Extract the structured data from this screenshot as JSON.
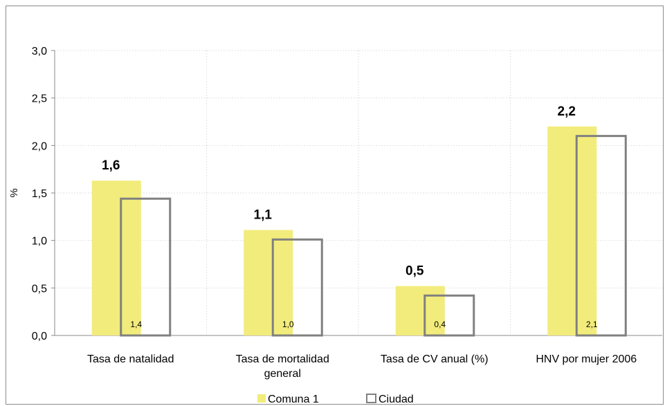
{
  "chart_data": {
    "type": "bar",
    "ylabel": "%",
    "ylim": [
      0,
      3.0
    ],
    "yticks": [
      "0,0",
      "0,5",
      "1,0",
      "1,5",
      "2,0",
      "2,5",
      "3,0"
    ],
    "grid": true,
    "legend_position": "bottom",
    "categories": [
      [
        "Tasa de natalidad"
      ],
      [
        "Tasa de mortalidad",
        "general"
      ],
      [
        "Tasa de CV anual (%)"
      ],
      [
        "HNV por mujer 2006"
      ]
    ],
    "series": [
      {
        "name": "Comuna 1",
        "values": [
          1.63,
          1.11,
          0.52,
          2.2
        ],
        "labels": [
          "1,6",
          "1,1",
          "0,5",
          "2,2"
        ],
        "color": "#f2ec7c"
      },
      {
        "name": "Ciudad",
        "values": [
          1.44,
          1.01,
          0.42,
          2.1
        ],
        "labels": [
          "1,4",
          "1,0",
          "0,4",
          "2,1"
        ],
        "color": "#808080"
      }
    ]
  }
}
